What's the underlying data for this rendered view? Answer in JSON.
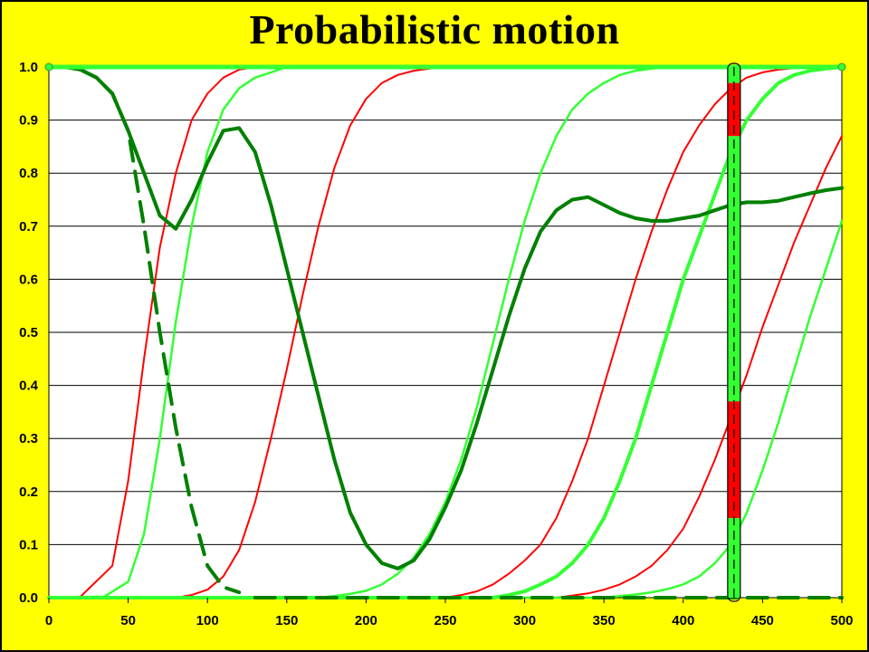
{
  "title": "Probabilistic motion",
  "chart_data": {
    "type": "line",
    "title": "Probabilistic motion",
    "xlim": [
      0,
      500
    ],
    "ylim": [
      0,
      1
    ],
    "xticks": [
      0,
      50,
      100,
      150,
      200,
      250,
      300,
      350,
      400,
      450,
      500
    ],
    "yticks": [
      "0.0",
      "0.1",
      "0.2",
      "0.3",
      "0.4",
      "0.5",
      "0.6",
      "0.7",
      "0.8",
      "0.9",
      "1.0"
    ],
    "grid": "horizontal",
    "legend": "none",
    "colors": {
      "background": "#ffff00",
      "plot_background": "#ffffff",
      "red": "#ff0000",
      "light_green": "#33ff33",
      "dark_green": "#008000"
    },
    "series": [
      {
        "style": "red-thin",
        "x": [
          0,
          20,
          40,
          50,
          60,
          70,
          80,
          90,
          100,
          110,
          120,
          130,
          500
        ],
        "y": [
          0,
          0.002,
          0.06,
          0.22,
          0.45,
          0.66,
          0.8,
          0.9,
          0.95,
          0.98,
          0.995,
          1,
          1
        ]
      },
      {
        "style": "green-thin",
        "x": [
          0,
          35,
          50,
          60,
          70,
          80,
          90,
          100,
          110,
          120,
          130,
          140,
          150,
          500
        ],
        "y": [
          0,
          0.002,
          0.03,
          0.12,
          0.3,
          0.52,
          0.7,
          0.84,
          0.92,
          0.96,
          0.98,
          0.99,
          1,
          1
        ]
      },
      {
        "style": "red-thin",
        "x": [
          0,
          80,
          90,
          100,
          110,
          120,
          130,
          140,
          150,
          160,
          170,
          180,
          190,
          200,
          210,
          220,
          230,
          240,
          250,
          260,
          500
        ],
        "y": [
          0,
          0,
          0.005,
          0.015,
          0.04,
          0.09,
          0.18,
          0.3,
          0.43,
          0.57,
          0.7,
          0.81,
          0.89,
          0.94,
          0.97,
          0.985,
          0.993,
          0.997,
          1,
          1,
          1
        ]
      },
      {
        "style": "green-thin",
        "x": [
          0,
          170,
          180,
          190,
          200,
          210,
          220,
          230,
          240,
          250,
          260,
          270,
          280,
          290,
          300,
          310,
          320,
          330,
          340,
          350,
          360,
          370,
          380,
          390,
          500
        ],
        "y": [
          0,
          0,
          0.003,
          0.007,
          0.013,
          0.025,
          0.045,
          0.075,
          0.12,
          0.18,
          0.26,
          0.36,
          0.48,
          0.6,
          0.71,
          0.8,
          0.87,
          0.92,
          0.95,
          0.97,
          0.985,
          0.993,
          0.997,
          1,
          1
        ]
      },
      {
        "style": "red-thin",
        "x": [
          0,
          250,
          260,
          270,
          280,
          290,
          300,
          310,
          320,
          330,
          340,
          350,
          360,
          370,
          380,
          390,
          400,
          410,
          420,
          430,
          440,
          450,
          460,
          470,
          480,
          490,
          500
        ],
        "y": [
          0,
          0,
          0.005,
          0.012,
          0.025,
          0.045,
          0.07,
          0.1,
          0.15,
          0.22,
          0.3,
          0.4,
          0.5,
          0.6,
          0.69,
          0.77,
          0.84,
          0.89,
          0.93,
          0.96,
          0.98,
          0.99,
          0.995,
          0.998,
          1,
          1,
          1
        ]
      },
      {
        "style": "green-thick",
        "x": [
          0,
          280,
          290,
          300,
          310,
          320,
          330,
          340,
          350,
          360,
          370,
          380,
          390,
          400,
          410,
          420,
          430,
          440,
          450,
          460,
          470,
          480,
          490,
          500
        ],
        "y": [
          0,
          0,
          0.005,
          0.012,
          0.025,
          0.04,
          0.065,
          0.1,
          0.15,
          0.22,
          0.3,
          0.4,
          0.5,
          0.6,
          0.68,
          0.76,
          0.84,
          0.9,
          0.94,
          0.97,
          0.985,
          0.993,
          0.997,
          1
        ]
      },
      {
        "style": "red-thin",
        "x": [
          0,
          320,
          330,
          340,
          350,
          360,
          370,
          380,
          390,
          400,
          410,
          420,
          430,
          440,
          450,
          460,
          470,
          480,
          490,
          500
        ],
        "y": [
          0,
          0,
          0.004,
          0.008,
          0.015,
          0.025,
          0.04,
          0.06,
          0.09,
          0.13,
          0.19,
          0.26,
          0.34,
          0.42,
          0.51,
          0.59,
          0.67,
          0.74,
          0.81,
          0.87
        ]
      },
      {
        "style": "green-thin",
        "x": [
          0,
          350,
          360,
          370,
          380,
          390,
          400,
          410,
          420,
          430,
          440,
          450,
          460,
          470,
          480,
          490,
          500
        ],
        "y": [
          0,
          0,
          0.003,
          0.006,
          0.01,
          0.016,
          0.025,
          0.04,
          0.065,
          0.1,
          0.16,
          0.24,
          0.33,
          0.43,
          0.53,
          0.62,
          0.71
        ]
      },
      {
        "style": "dark-green-thick",
        "x": [
          0,
          10,
          20,
          30,
          40,
          50,
          60,
          70,
          80,
          90,
          100,
          110,
          120,
          130,
          140,
          150,
          160,
          170,
          180,
          190,
          200,
          210,
          220,
          230,
          240,
          250,
          260,
          270,
          280,
          290,
          300,
          310,
          320,
          330,
          340,
          350,
          360,
          370,
          380,
          390,
          400,
          410,
          420,
          430,
          440,
          450,
          460,
          470,
          480,
          490,
          500
        ],
        "y": [
          1,
          1,
          0.995,
          0.98,
          0.95,
          0.88,
          0.8,
          0.72,
          0.695,
          0.75,
          0.82,
          0.88,
          0.885,
          0.84,
          0.74,
          0.62,
          0.5,
          0.38,
          0.26,
          0.16,
          0.1,
          0.065,
          0.055,
          0.07,
          0.11,
          0.17,
          0.24,
          0.33,
          0.43,
          0.53,
          0.62,
          0.69,
          0.73,
          0.75,
          0.755,
          0.74,
          0.725,
          0.715,
          0.71,
          0.71,
          0.715,
          0.72,
          0.73,
          0.74,
          0.745,
          0.745,
          0.748,
          0.755,
          0.762,
          0.768,
          0.772
        ]
      },
      {
        "style": "dark-green-dashed",
        "x": [
          0,
          10,
          20,
          30,
          40,
          50,
          60,
          70,
          80,
          90,
          100,
          110,
          120
        ],
        "y": [
          1,
          1,
          0.995,
          0.98,
          0.95,
          0.88,
          0.7,
          0.5,
          0.32,
          0.17,
          0.06,
          0.02,
          0.01
        ]
      },
      {
        "style": "dark-green-dashed",
        "x": [
          130,
          200,
          300,
          400,
          500
        ],
        "y": [
          0,
          0,
          0,
          0,
          0
        ]
      },
      {
        "style": "green-top",
        "x": [
          0,
          500
        ],
        "y": [
          1,
          1
        ]
      }
    ],
    "marker_bar": {
      "x": 432,
      "segments": [
        {
          "y0": 0,
          "y1": 0.15,
          "color": "#33ff33"
        },
        {
          "y0": 0.15,
          "y1": 0.37,
          "color": "#ff0000"
        },
        {
          "y0": 0.37,
          "y1": 0.87,
          "color": "#33ff33"
        },
        {
          "y0": 0.87,
          "y1": 0.97,
          "color": "#ff0000"
        },
        {
          "y0": 0.97,
          "y1": 1,
          "color": "#33ff33"
        }
      ]
    }
  }
}
